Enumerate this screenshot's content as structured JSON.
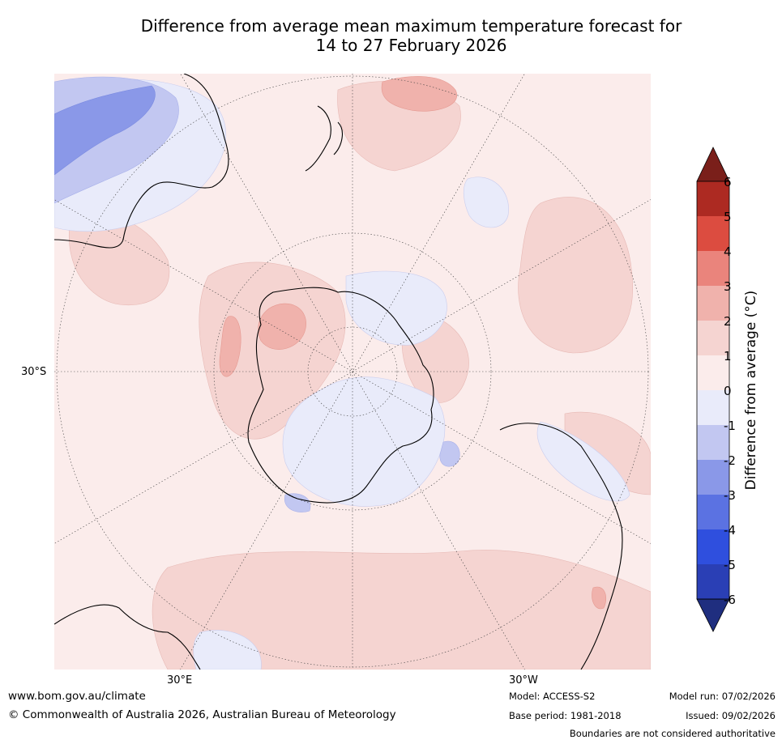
{
  "title": {
    "line1": "Difference from average mean maximum temperature forecast for",
    "line2": "14 to 27 February 2026"
  },
  "axis_labels": {
    "lat": "30°S",
    "lon_east": "30°E",
    "lon_west": "30°W"
  },
  "colorbar": {
    "title": "Difference from average (°C)",
    "ticks": [
      "6",
      "5",
      "4",
      "3",
      "2",
      "1",
      "0",
      "-1",
      "-2",
      "-3",
      "-4",
      "-5",
      "-6"
    ],
    "colors": {
      "above_6": "#7a1f1a",
      "5_to_6": "#ad2a22",
      "4_to_5": "#dc4c40",
      "3_to_4": "#ea847c",
      "2_to_3": "#f0b2ac",
      "1_to_2": "#f5d4d1",
      "0_to_1": "#fbeceb",
      "m1_to_0": "#e9ebfa",
      "m2_to_m1": "#c2c7f1",
      "m3_to_m2": "#8a98e8",
      "m4_to_m3": "#5b72e2",
      "m5_to_m4": "#2f4fde",
      "m6_to_m5": "#2a3fb5",
      "below_m6": "#1f2e7f"
    }
  },
  "footer": {
    "website": "www.bom.gov.au/climate",
    "copyright": "© Commonwealth of Australia 2026, Australian Bureau of Meteorology",
    "model": "Model: ACCESS-S2",
    "base_period": "Base period: 1981-2018",
    "model_run": "Model run: 07/02/2026",
    "issued": "Issued: 09/02/2026",
    "disclaimer": "Boundaries are not considered authoritative"
  }
}
